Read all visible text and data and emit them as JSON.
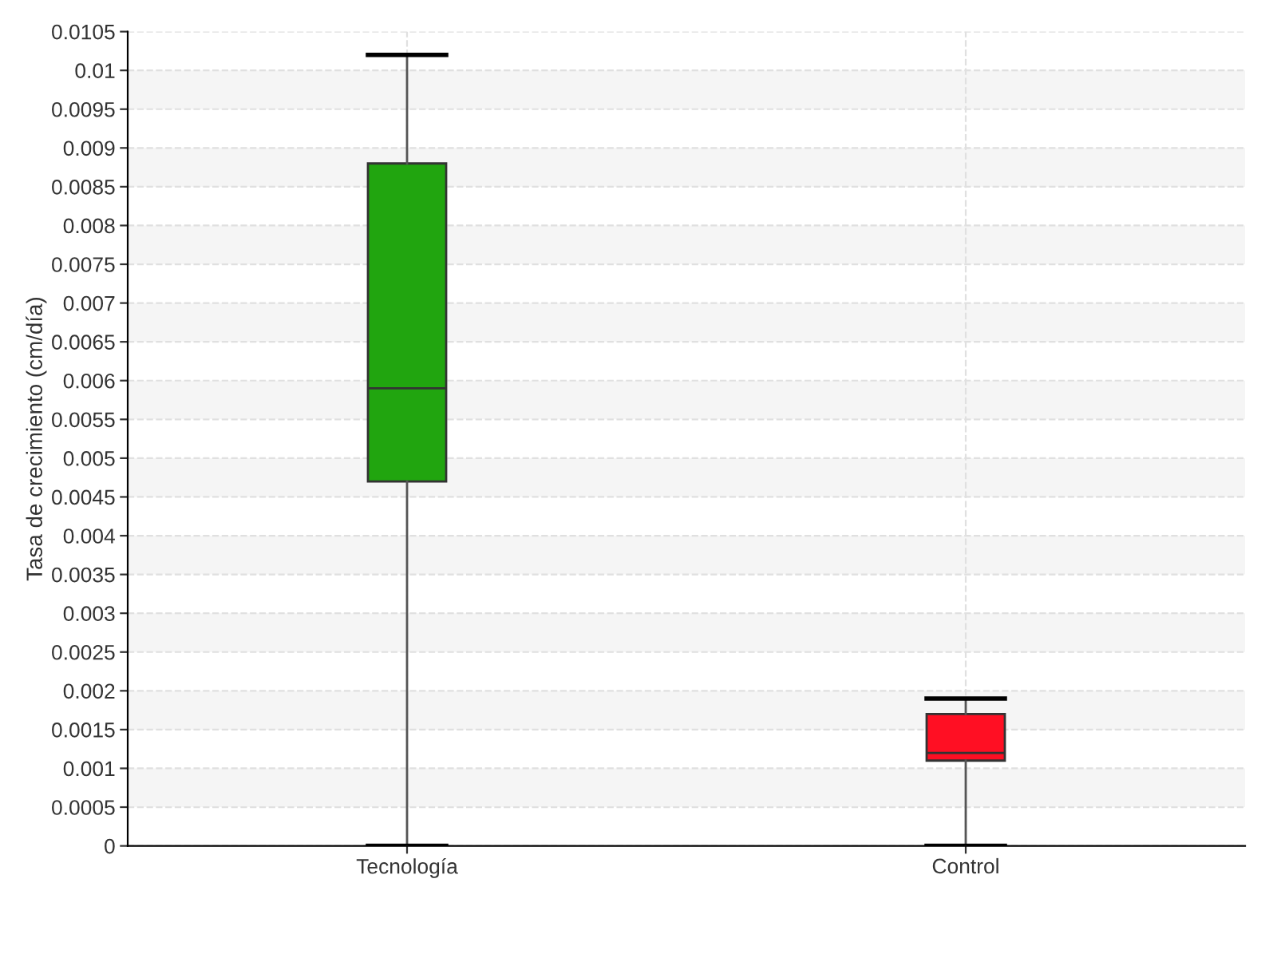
{
  "chart_data": {
    "type": "box",
    "ylabel": "Tasa de crecimiento (cm/día)",
    "categories": [
      "Tecnología",
      "Control"
    ],
    "colors": [
      "#21a50f",
      "#ff0f23"
    ],
    "boxes": [
      {
        "low": 0,
        "q1": 0.0047,
        "median": 0.0059,
        "q3": 0.0088,
        "high": 0.0102
      },
      {
        "low": 0,
        "q1": 0.0011,
        "median": 0.0012,
        "q3": 0.0017,
        "high": 0.0019
      }
    ],
    "ylim": [
      0,
      0.0105
    ],
    "yticks": [
      0,
      0.0005,
      0.001,
      0.0015,
      0.002,
      0.0025,
      0.003,
      0.0035,
      0.004,
      0.0045,
      0.005,
      0.0055,
      0.006,
      0.0065,
      0.007,
      0.0075,
      0.008,
      0.0085,
      0.009,
      0.0095,
      0.01,
      0.0105
    ],
    "grid": true
  }
}
